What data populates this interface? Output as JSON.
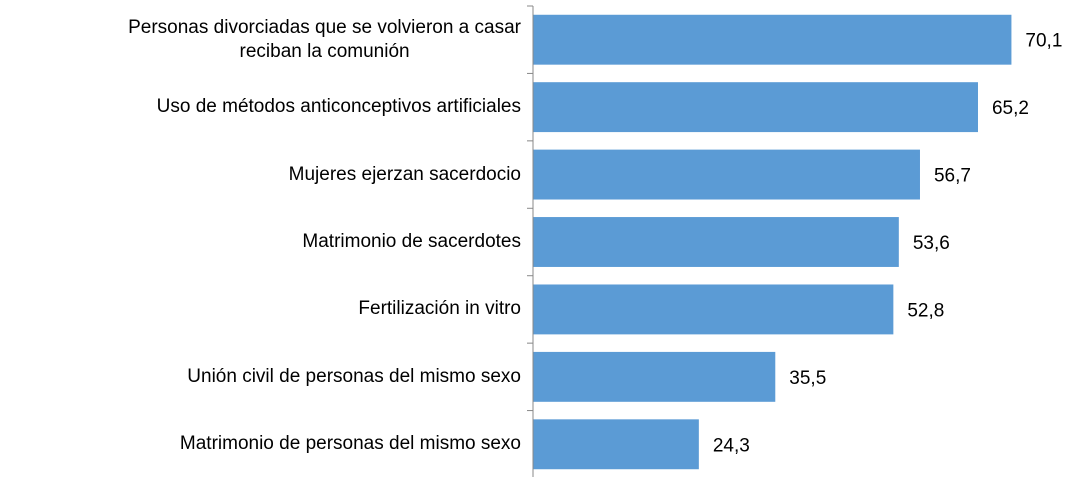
{
  "chart_data": {
    "type": "bar",
    "orientation": "horizontal",
    "categories": [
      "Personas divorciadas que se volvieron a casar\nreciban la comunión",
      "Uso de métodos anticonceptivos artificiales",
      "Mujeres ejerzan sacerdocio",
      "Matrimonio de sacerdotes",
      "Fertilización in vitro",
      "Unión civil de personas del mismo sexo",
      "Matrimonio de personas del mismo sexo"
    ],
    "values": [
      70.1,
      65.2,
      56.7,
      53.6,
      52.8,
      35.5,
      24.3
    ],
    "value_labels": [
      "70,1",
      "65,2",
      "56,7",
      "53,6",
      "52,8",
      "35,5",
      "24,3"
    ],
    "color": "#5b9bd5",
    "xlim": [
      0,
      80
    ]
  }
}
